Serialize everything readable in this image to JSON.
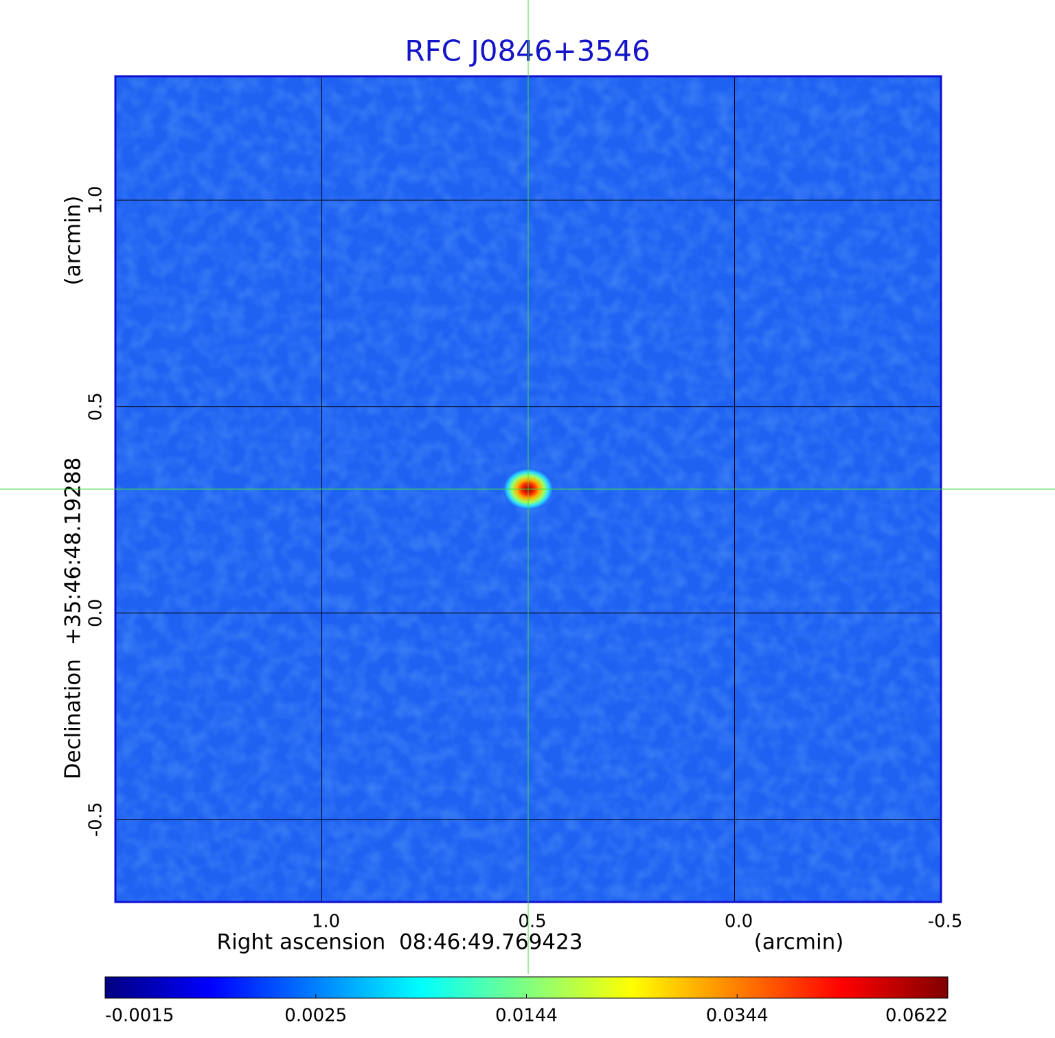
{
  "chart_data": {
    "type": "image",
    "title": "RFC J0846+3546",
    "x_label": "Right ascension  08:46:49.769423",
    "x_unit": "(arcmin)",
    "y_label": "Declination  +35:46:48.19288",
    "y_unit": "(arcmin)",
    "xlim": [
      1.5,
      -0.5
    ],
    "ylim": [
      -0.7,
      1.3
    ],
    "xticks": [
      {
        "value": 1,
        "label": "1.0"
      },
      0.5,
      {
        "value": 0,
        "label": "0.0"
      },
      -0.5
    ],
    "yticks": [
      -0.5,
      {
        "value": 0,
        "label": "0.0"
      },
      0.5,
      {
        "value": 1,
        "label": "1.0"
      }
    ],
    "grid": true,
    "colormap": "jet",
    "background_color": "#1f62f2",
    "source": {
      "x": 0.5,
      "y": 0.3,
      "peak": 0.0622
    },
    "colorbar_ticks": [
      -0.0015,
      0.0025,
      0.0144,
      0.0344,
      0.0622
    ]
  }
}
